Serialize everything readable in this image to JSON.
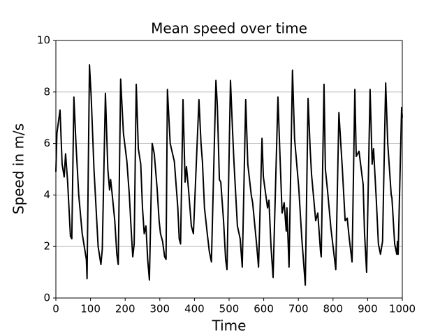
{
  "chart_data": {
    "type": "line",
    "title": "Mean speed over time",
    "xlabel": "Time",
    "ylabel": "Speed in m/s",
    "x": [
      0,
      3,
      12,
      18,
      24,
      28,
      34,
      42,
      46,
      52,
      58,
      66,
      76,
      82,
      88,
      90,
      97,
      102,
      110,
      118,
      122,
      130,
      134,
      143,
      150,
      155,
      158,
      162,
      170,
      176,
      180,
      187,
      195,
      205,
      212,
      218,
      222,
      226,
      232,
      238,
      245,
      250,
      255,
      260,
      265,
      270,
      278,
      284,
      292,
      298,
      302,
      308,
      314,
      318,
      322,
      330,
      342,
      352,
      356,
      360,
      367,
      373,
      377,
      383,
      391,
      397,
      413,
      419,
      423,
      429,
      437,
      443,
      449,
      462,
      466,
      472,
      476,
      484,
      490,
      494,
      504,
      510,
      514,
      524,
      532,
      538,
      548,
      554,
      564,
      568,
      580,
      585,
      595,
      599,
      611,
      615,
      621,
      627,
      641,
      647,
      653,
      659,
      665,
      667,
      673,
      683,
      689,
      701,
      710,
      720,
      728,
      734,
      738,
      750,
      756,
      764,
      766,
      774,
      778,
      784,
      794,
      808,
      817,
      827,
      835,
      841,
      847,
      855,
      863,
      867,
      875,
      887,
      891,
      897,
      907,
      913,
      917,
      925,
      931,
      937,
      943,
      952,
      958,
      968,
      970,
      978,
      984,
      986,
      988,
      998,
      1000
    ],
    "values": [
      4.9,
      6.4,
      7.3,
      5.2,
      4.7,
      5.6,
      4.5,
      2.4,
      2.3,
      7.8,
      6,
      4,
      2.5,
      2,
      1.5,
      0.75,
      9.05,
      7.8,
      5,
      3,
      2,
      1.3,
      1.9,
      7.95,
      5,
      4.2,
      4.6,
      4.1,
      3,
      1.7,
      1.3,
      8.5,
      6.4,
      5.3,
      4,
      2.5,
      1.6,
      2.1,
      8.3,
      5.8,
      5.2,
      3.5,
      2.5,
      2.8,
      1.5,
      0.7,
      6,
      5.6,
      4.3,
      3,
      2.5,
      2.2,
      1.6,
      1.5,
      8.1,
      6,
      5.3,
      3.5,
      2.3,
      2.1,
      7.7,
      4.5,
      5.1,
      4.2,
      2.8,
      2.5,
      7.7,
      6,
      5.3,
      3.5,
      2.5,
      1.8,
      1.4,
      8.45,
      7.5,
      4.6,
      4.5,
      3,
      1.5,
      1.1,
      8.45,
      6.5,
      5.3,
      2.8,
      2.3,
      1.2,
      7.7,
      5.2,
      4,
      3.7,
      2,
      1.2,
      6.2,
      4.7,
      3.5,
      3.8,
      2,
      0.8,
      7.8,
      5.5,
      3.3,
      3.7,
      2.6,
      3.5,
      1.2,
      8.85,
      6.2,
      4.3,
      2.3,
      0.5,
      7.75,
      5.8,
      4.8,
      3,
      3.3,
      1.8,
      1.6,
      8.3,
      5,
      4.2,
      2.7,
      1.1,
      7.2,
      5,
      3,
      3.1,
      2.3,
      1.4,
      8.1,
      5.5,
      5.7,
      4.4,
      2.5,
      1,
      8.1,
      5.2,
      5.8,
      3.8,
      2.1,
      1.7,
      2.2,
      8.35,
      6,
      4,
      3.9,
      2.1,
      1.7,
      2.2,
      1.7,
      7.4,
      7
    ],
    "color": "#000000",
    "xlim": [
      0,
      1000
    ],
    "xticks": [
      0,
      100,
      200,
      300,
      400,
      500,
      600,
      700,
      800,
      900,
      1000
    ],
    "ylim": [
      0,
      10
    ],
    "yticks": [
      0,
      2,
      4,
      6,
      8,
      10
    ],
    "grid": "y"
  }
}
